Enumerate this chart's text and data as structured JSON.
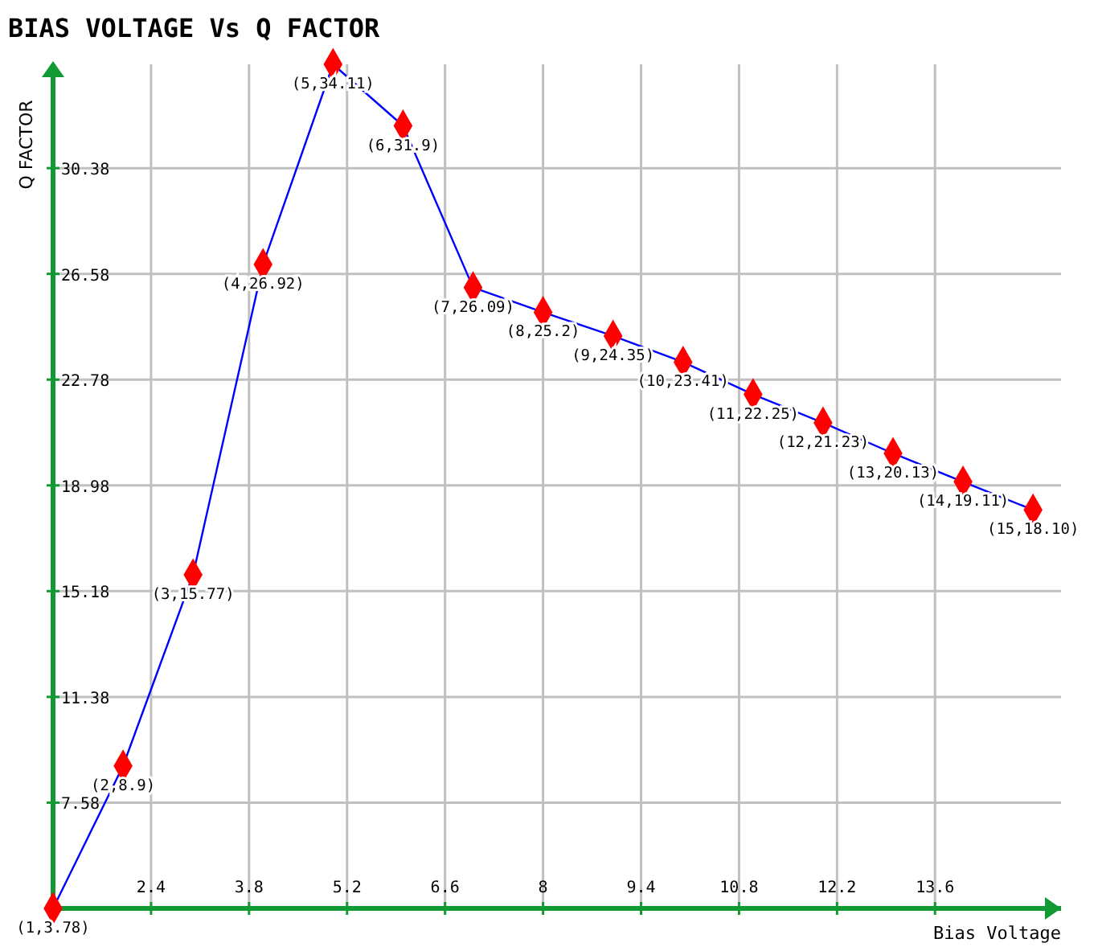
{
  "chart_data": {
    "type": "line",
    "title": "BIAS VOLTAGE Vs Q FACTOR",
    "xlabel": "Bias Voltage",
    "ylabel": "Q FACTOR",
    "x": [
      1,
      2,
      3,
      4,
      5,
      6,
      7,
      8,
      9,
      10,
      11,
      12,
      13,
      14,
      15
    ],
    "series": [
      {
        "color": "#0000ff",
        "values": [
          3.78,
          8.9,
          15.77,
          26.92,
          34.11,
          31.9,
          26.09,
          25.2,
          24.35,
          23.41,
          22.25,
          21.23,
          20.13,
          19.11,
          18.1
        ],
        "value_labels": [
          "(1,3.78)",
          "(2,8.9)",
          "(3,15.77)",
          "(4,26.92)",
          "(5,34.11)",
          "(6,31.9)",
          "(7,26.09)",
          "(8,25.2)",
          "(9,24.35)",
          "(10,23.41)",
          "(11,22.25)",
          "(12,21.23)",
          "(13,20.13)",
          "(14,19.11)",
          "(15,18.10)"
        ]
      }
    ],
    "marker": "diamond",
    "xlim": [
      1,
      15.4
    ],
    "ylim": [
      3.78,
      34.11
    ],
    "xticks": [
      2.4,
      3.8,
      5.2,
      6.6,
      8,
      9.4,
      10.8,
      12.2,
      13.6
    ],
    "yticks": [
      7.58,
      11.38,
      15.18,
      18.98,
      22.78,
      26.58,
      30.38
    ],
    "grid": true
  }
}
